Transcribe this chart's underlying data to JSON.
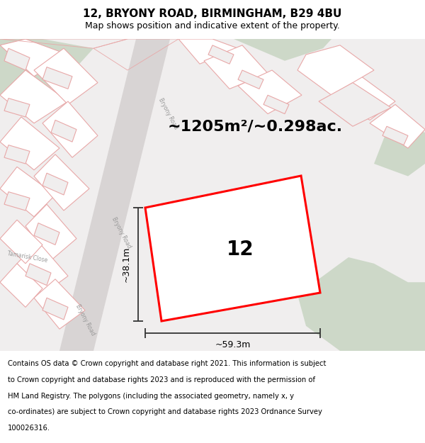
{
  "title_line1": "12, BRYONY ROAD, BIRMINGHAM, B29 4BU",
  "title_line2": "Map shows position and indicative extent of the property.",
  "area_text": "~1205m²/~0.298ac.",
  "property_number": "12",
  "width_label": "~59.3m",
  "height_label": "~38.1m",
  "map_bg": "#f0eeee",
  "road_color": "#d8d4d4",
  "plot_outline_color": "#e8a8a8",
  "green_area_color": "#cdd8c8",
  "red_poly_color": "#ff0000",
  "dim_line_color": "#333333",
  "footer_lines": [
    "Contains OS data © Crown copyright and database right 2021. This information is subject",
    "to Crown copyright and database rights 2023 and is reproduced with the permission of",
    "HM Land Registry. The polygons (including the associated geometry, namely x, y",
    "co-ordinates) are subject to Crown copyright and database rights 2023 Ordnance Survey",
    "100026316."
  ],
  "title_fontsize": 11,
  "subtitle_fontsize": 9,
  "area_fontsize": 16,
  "number_fontsize": 20,
  "dim_fontsize": 9,
  "road_label_fontsize": 5.5,
  "footer_fontsize": 7.2,
  "street_label_bryony": "Bryony Road",
  "street_label_tamarisk": "Tamarisk Close"
}
